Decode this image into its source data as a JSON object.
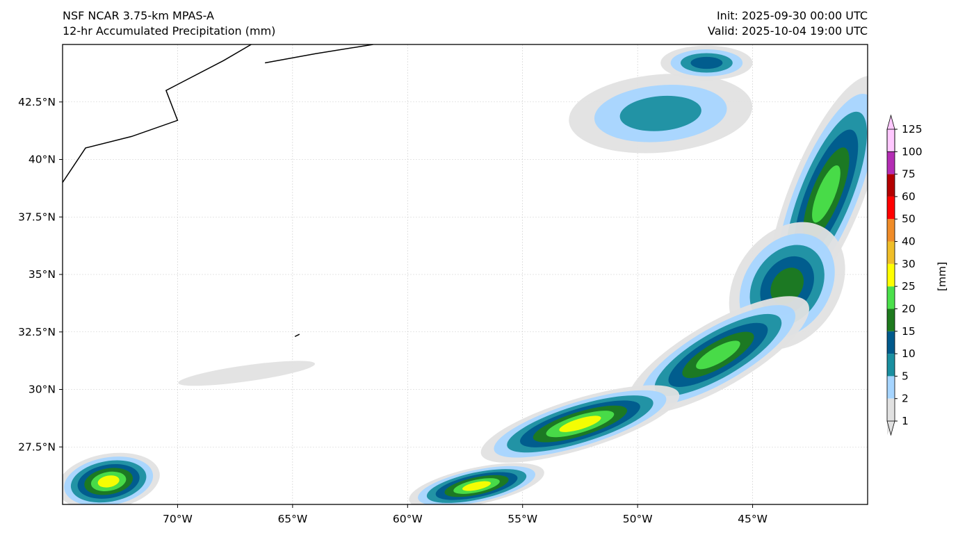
{
  "header": {
    "model": "NSF NCAR 3.75-km MPAS-A",
    "product": "12-hr Accumulated Precipitation (mm)",
    "init": "Init: 2025-09-30 00:00 UTC",
    "valid": "Valid: 2025-10-04 19:00 UTC"
  },
  "map": {
    "extent": {
      "lon_min": -75,
      "lon_max": -40,
      "lat_min": 25,
      "lat_max": 45
    },
    "lat_ticks": [
      {
        "value": 27.5,
        "label": "27.5°N"
      },
      {
        "value": 30,
        "label": "30°N"
      },
      {
        "value": 32.5,
        "label": "32.5°N"
      },
      {
        "value": 35,
        "label": "35°N"
      },
      {
        "value": 37.5,
        "label": "37.5°N"
      },
      {
        "value": 40,
        "label": "40°N"
      },
      {
        "value": 42.5,
        "label": "42.5°N"
      }
    ],
    "lon_ticks": [
      {
        "value": -70,
        "label": "70°W"
      },
      {
        "value": -65,
        "label": "65°W"
      },
      {
        "value": -60,
        "label": "60°W"
      },
      {
        "value": -55,
        "label": "55°W"
      },
      {
        "value": -50,
        "label": "50°W"
      },
      {
        "value": -45,
        "label": "45°W"
      }
    ],
    "precip_features": [
      {
        "name": "band-north-east",
        "lon": -41.8,
        "lat": 38.5,
        "w": 3.2,
        "h": 11,
        "rot": 22,
        "level": 6
      },
      {
        "name": "band-mid-east",
        "lon": -43.5,
        "lat": 34.5,
        "w": 4.5,
        "h": 6,
        "rot": 35,
        "level": 5
      },
      {
        "name": "band-central",
        "lon": -46.5,
        "lat": 31.5,
        "w": 9,
        "h": 2.8,
        "rot": -30,
        "level": 6
      },
      {
        "name": "band-south-west",
        "lon": -52.5,
        "lat": 28.5,
        "w": 9,
        "h": 2.2,
        "rot": -17,
        "level": 7
      },
      {
        "name": "band-south-tip",
        "lon": -57,
        "lat": 25.8,
        "w": 6,
        "h": 1.6,
        "rot": -12,
        "level": 7
      },
      {
        "name": "low-north-swirl",
        "lon": -49,
        "lat": 42,
        "w": 8,
        "h": 3.4,
        "rot": -5,
        "level": 3
      },
      {
        "name": "low-north-core",
        "lon": -47,
        "lat": 44.2,
        "w": 4,
        "h": 1.5,
        "rot": 0,
        "level": 4
      },
      {
        "name": "sw-corner-system",
        "lon": -73,
        "lat": 26,
        "w": 4.5,
        "h": 2.4,
        "rot": -10,
        "level": 7
      },
      {
        "name": "scattered-west",
        "lon": -67,
        "lat": 30.7,
        "w": 6,
        "h": 0.7,
        "rot": -8,
        "level": 1
      }
    ],
    "coast_features": [
      {
        "name": "new-england-coast",
        "points": [
          [
            -75,
            39
          ],
          [
            -74,
            40.5
          ],
          [
            -72,
            41
          ],
          [
            -70,
            41.7
          ],
          [
            -70.5,
            43
          ],
          [
            -68,
            44.3
          ],
          [
            -66.8,
            45
          ]
        ]
      },
      {
        "name": "nova-scotia-coast",
        "points": [
          [
            -66.2,
            44.2
          ],
          [
            -64,
            44.6
          ],
          [
            -61.5,
            45
          ]
        ]
      },
      {
        "name": "bermuda",
        "points": [
          [
            -64.9,
            32.3
          ],
          [
            -64.7,
            32.4
          ]
        ]
      }
    ]
  },
  "colorbar": {
    "unit_label": "[mm]",
    "levels": [
      "1",
      "2",
      "5",
      "10",
      "15",
      "20",
      "25",
      "30",
      "40",
      "50",
      "60",
      "75",
      "100",
      "125"
    ],
    "colors": [
      "#e1e1e1",
      "#a6d5ff",
      "#1a8fa0",
      "#005a8c",
      "#1e7a1e",
      "#4be04b",
      "#ffff00",
      "#f0be28",
      "#f08c28",
      "#ff0000",
      "#b40000",
      "#b42db4",
      "#ffc8ff"
    ]
  }
}
